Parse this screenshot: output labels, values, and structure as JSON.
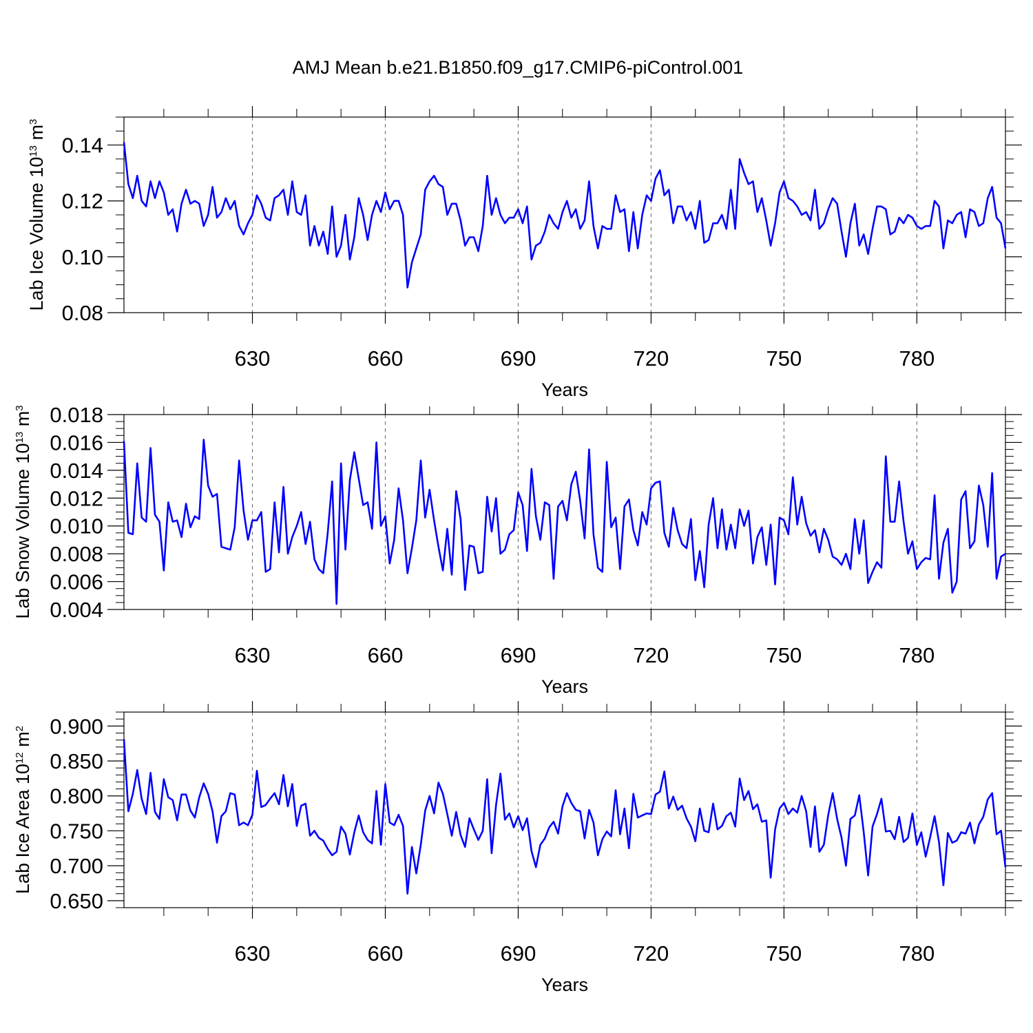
{
  "title": "AMJ Mean b.e21.B1850.f09_g17.CMIP6-piControl.001",
  "line_color": "#0000ff",
  "chart_data": [
    {
      "type": "line",
      "name": "lab-ice-volume",
      "ylabel": "Lab Ice Volume 10",
      "ylabel_exp": "13",
      "ylabel_unit": " m",
      "ylabel_unit_exp": "3",
      "xlabel": "Years",
      "xlim": [
        601,
        800
      ],
      "ylim": [
        0.08,
        0.15
      ],
      "xticks": [
        630,
        660,
        690,
        720,
        750,
        780
      ],
      "xtick_labels": [
        "630",
        "660",
        "690",
        "720",
        "750",
        "780"
      ],
      "yticks": [
        0.08,
        0.1,
        0.12,
        0.14
      ],
      "ytick_labels": [
        "0.08",
        "0.10",
        "0.12",
        "0.14"
      ],
      "yminor_step": 0.005,
      "grid_x": true,
      "x_start": 601,
      "values": [
        0.141,
        0.126,
        0.121,
        0.129,
        0.12,
        0.118,
        0.127,
        0.121,
        0.127,
        0.123,
        0.115,
        0.117,
        0.109,
        0.119,
        0.124,
        0.119,
        0.12,
        0.119,
        0.111,
        0.115,
        0.125,
        0.114,
        0.116,
        0.121,
        0.117,
        0.12,
        0.111,
        0.108,
        0.112,
        0.115,
        0.122,
        0.119,
        0.114,
        0.113,
        0.121,
        0.122,
        0.124,
        0.115,
        0.127,
        0.116,
        0.115,
        0.122,
        0.104,
        0.111,
        0.104,
        0.109,
        0.101,
        0.118,
        0.1,
        0.104,
        0.115,
        0.099,
        0.107,
        0.121,
        0.115,
        0.106,
        0.115,
        0.12,
        0.116,
        0.123,
        0.117,
        0.12,
        0.12,
        0.115,
        0.089,
        0.098,
        0.103,
        0.108,
        0.124,
        0.127,
        0.129,
        0.126,
        0.125,
        0.115,
        0.119,
        0.119,
        0.113,
        0.104,
        0.107,
        0.107,
        0.102,
        0.111,
        0.129,
        0.115,
        0.121,
        0.115,
        0.112,
        0.114,
        0.114,
        0.117,
        0.112,
        0.118,
        0.099,
        0.104,
        0.105,
        0.109,
        0.115,
        0.112,
        0.11,
        0.116,
        0.12,
        0.114,
        0.117,
        0.11,
        0.113,
        0.127,
        0.111,
        0.103,
        0.111,
        0.11,
        0.11,
        0.122,
        0.116,
        0.117,
        0.102,
        0.116,
        0.103,
        0.115,
        0.122,
        0.12,
        0.128,
        0.131,
        0.122,
        0.124,
        0.112,
        0.118,
        0.118,
        0.113,
        0.116,
        0.11,
        0.12,
        0.105,
        0.106,
        0.112,
        0.112,
        0.115,
        0.11,
        0.124,
        0.11,
        0.135,
        0.13,
        0.126,
        0.127,
        0.116,
        0.121,
        0.113,
        0.104,
        0.112,
        0.123,
        0.127,
        0.121,
        0.12,
        0.118,
        0.115,
        0.116,
        0.113,
        0.124,
        0.11,
        0.112,
        0.117,
        0.121,
        0.119,
        0.109,
        0.1,
        0.112,
        0.119,
        0.104,
        0.108,
        0.101,
        0.11,
        0.118,
        0.118,
        0.117,
        0.108,
        0.109,
        0.114,
        0.112,
        0.115,
        0.114,
        0.111,
        0.11,
        0.111,
        0.111,
        0.12,
        0.118,
        0.103,
        0.113,
        0.112,
        0.115,
        0.116,
        0.107,
        0.117,
        0.116,
        0.111,
        0.112,
        0.121,
        0.125,
        0.114,
        0.112,
        0.103
      ]
    },
    {
      "type": "line",
      "name": "lab-snow-volume",
      "ylabel": "Lab Snow Volume 10",
      "ylabel_exp": "13",
      "ylabel_unit": " m",
      "ylabel_unit_exp": "3",
      "xlabel": "Years",
      "xlim": [
        601,
        800
      ],
      "ylim": [
        0.004,
        0.018
      ],
      "xticks": [
        630,
        660,
        690,
        720,
        750,
        780
      ],
      "xtick_labels": [
        "630",
        "660",
        "690",
        "720",
        "750",
        "780"
      ],
      "yticks": [
        0.004,
        0.006,
        0.008,
        0.01,
        0.012,
        0.014,
        0.016,
        0.018
      ],
      "ytick_labels": [
        "0.004",
        "0.006",
        "0.008",
        "0.010",
        "0.012",
        "0.014",
        "0.016",
        "0.018"
      ],
      "yminor_step": 0.0005,
      "grid_x": true,
      "x_start": 601,
      "values": [
        0.0161,
        0.0095,
        0.0094,
        0.0145,
        0.0106,
        0.0103,
        0.0156,
        0.0108,
        0.0103,
        0.0068,
        0.0117,
        0.0103,
        0.0104,
        0.0092,
        0.0116,
        0.0099,
        0.0107,
        0.0105,
        0.0162,
        0.0129,
        0.0121,
        0.0123,
        0.0085,
        0.0084,
        0.0083,
        0.0099,
        0.0147,
        0.0111,
        0.009,
        0.0104,
        0.0104,
        0.011,
        0.0067,
        0.0069,
        0.0117,
        0.0081,
        0.0128,
        0.008,
        0.0092,
        0.01,
        0.011,
        0.0087,
        0.0103,
        0.0076,
        0.0069,
        0.0066,
        0.0095,
        0.0132,
        0.0044,
        0.0145,
        0.0083,
        0.0133,
        0.0153,
        0.0134,
        0.0115,
        0.0117,
        0.0098,
        0.016,
        0.01,
        0.0107,
        0.0073,
        0.009,
        0.0127,
        0.0104,
        0.0066,
        0.0084,
        0.0104,
        0.0147,
        0.0106,
        0.0126,
        0.0104,
        0.0085,
        0.0068,
        0.0098,
        0.0065,
        0.0125,
        0.0105,
        0.0054,
        0.0086,
        0.0085,
        0.0066,
        0.0067,
        0.0121,
        0.0096,
        0.012,
        0.008,
        0.0083,
        0.0094,
        0.0097,
        0.0124,
        0.0115,
        0.0082,
        0.0141,
        0.0107,
        0.009,
        0.0117,
        0.0115,
        0.0062,
        0.0114,
        0.0118,
        0.0104,
        0.013,
        0.0139,
        0.0118,
        0.0091,
        0.0155,
        0.0094,
        0.007,
        0.0067,
        0.0146,
        0.0099,
        0.0106,
        0.0069,
        0.0114,
        0.0119,
        0.0097,
        0.0086,
        0.011,
        0.0101,
        0.0127,
        0.0131,
        0.0132,
        0.0095,
        0.0085,
        0.0113,
        0.0097,
        0.0087,
        0.0084,
        0.0105,
        0.0061,
        0.0082,
        0.0056,
        0.0101,
        0.012,
        0.0084,
        0.0112,
        0.0083,
        0.0101,
        0.0084,
        0.0112,
        0.01,
        0.0111,
        0.0073,
        0.0092,
        0.0099,
        0.0072,
        0.0101,
        0.0058,
        0.0106,
        0.0104,
        0.0094,
        0.0135,
        0.0101,
        0.0121,
        0.0102,
        0.0093,
        0.0097,
        0.0081,
        0.0098,
        0.009,
        0.0078,
        0.0076,
        0.0072,
        0.008,
        0.0069,
        0.0105,
        0.008,
        0.0104,
        0.0059,
        0.0067,
        0.0074,
        0.007,
        0.015,
        0.0103,
        0.0103,
        0.0132,
        0.0103,
        0.008,
        0.0089,
        0.0069,
        0.0074,
        0.0077,
        0.0076,
        0.0122,
        0.0062,
        0.0088,
        0.0098,
        0.0052,
        0.006,
        0.0119,
        0.0125,
        0.0084,
        0.0089,
        0.0129,
        0.0115,
        0.0085,
        0.0138,
        0.0062,
        0.0078,
        0.008
      ]
    },
    {
      "type": "line",
      "name": "lab-ice-area",
      "ylabel": "Lab Ice Area 10",
      "ylabel_exp": "12",
      "ylabel_unit": " m",
      "ylabel_unit_exp": "2",
      "xlabel": "Years",
      "xlim": [
        601,
        800
      ],
      "ylim": [
        0.64,
        0.92
      ],
      "xticks": [
        630,
        660,
        690,
        720,
        750,
        780
      ],
      "xtick_labels": [
        "630",
        "660",
        "690",
        "720",
        "750",
        "780"
      ],
      "yticks": [
        0.65,
        0.7,
        0.75,
        0.8,
        0.85,
        0.9
      ],
      "ytick_labels": [
        "0.650",
        "0.700",
        "0.750",
        "0.800",
        "0.850",
        "0.900"
      ],
      "yminor_step": 0.01,
      "grid_x": true,
      "x_start": 601,
      "values": [
        0.881,
        0.778,
        0.803,
        0.837,
        0.796,
        0.774,
        0.833,
        0.777,
        0.767,
        0.824,
        0.798,
        0.794,
        0.765,
        0.802,
        0.802,
        0.779,
        0.769,
        0.798,
        0.818,
        0.803,
        0.778,
        0.733,
        0.771,
        0.778,
        0.804,
        0.802,
        0.758,
        0.762,
        0.758,
        0.773,
        0.836,
        0.784,
        0.787,
        0.796,
        0.804,
        0.788,
        0.83,
        0.785,
        0.817,
        0.757,
        0.786,
        0.789,
        0.743,
        0.75,
        0.74,
        0.736,
        0.724,
        0.715,
        0.72,
        0.756,
        0.746,
        0.716,
        0.748,
        0.772,
        0.748,
        0.737,
        0.732,
        0.807,
        0.73,
        0.817,
        0.762,
        0.758,
        0.773,
        0.757,
        0.66,
        0.727,
        0.689,
        0.73,
        0.779,
        0.8,
        0.775,
        0.819,
        0.803,
        0.774,
        0.743,
        0.777,
        0.744,
        0.727,
        0.768,
        0.752,
        0.737,
        0.75,
        0.824,
        0.718,
        0.787,
        0.832,
        0.766,
        0.775,
        0.755,
        0.771,
        0.751,
        0.768,
        0.721,
        0.698,
        0.73,
        0.739,
        0.755,
        0.763,
        0.746,
        0.785,
        0.804,
        0.79,
        0.78,
        0.778,
        0.739,
        0.78,
        0.762,
        0.715,
        0.738,
        0.749,
        0.742,
        0.808,
        0.745,
        0.782,
        0.725,
        0.803,
        0.769,
        0.772,
        0.775,
        0.774,
        0.802,
        0.806,
        0.835,
        0.782,
        0.799,
        0.78,
        0.786,
        0.768,
        0.756,
        0.735,
        0.782,
        0.75,
        0.748,
        0.789,
        0.752,
        0.757,
        0.771,
        0.776,
        0.756,
        0.825,
        0.794,
        0.807,
        0.781,
        0.788,
        0.763,
        0.765,
        0.683,
        0.752,
        0.782,
        0.79,
        0.774,
        0.782,
        0.776,
        0.8,
        0.778,
        0.727,
        0.785,
        0.72,
        0.73,
        0.773,
        0.804,
        0.767,
        0.74,
        0.7,
        0.767,
        0.772,
        0.801,
        0.748,
        0.686,
        0.756,
        0.774,
        0.796,
        0.749,
        0.75,
        0.738,
        0.77,
        0.734,
        0.74,
        0.775,
        0.73,
        0.748,
        0.713,
        0.741,
        0.771,
        0.734,
        0.672,
        0.747,
        0.733,
        0.736,
        0.748,
        0.746,
        0.762,
        0.732,
        0.759,
        0.77,
        0.795,
        0.804,
        0.745,
        0.75,
        0.698
      ]
    }
  ]
}
